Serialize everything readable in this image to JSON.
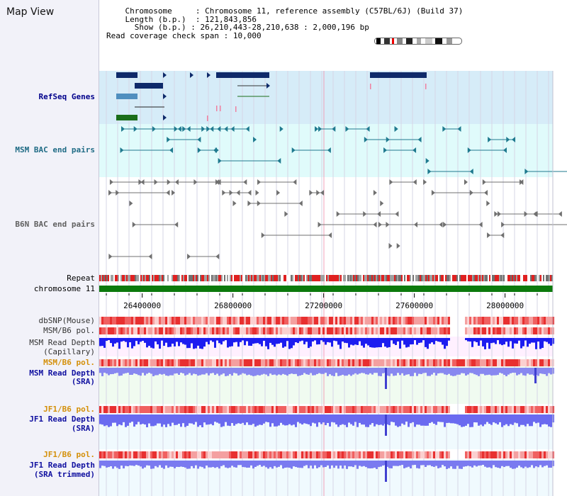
{
  "view": {
    "title": "Map View"
  },
  "info": {
    "chromosome_label": "Chromosome",
    "chromosome_value": "Chromosome 11, reference assembly (C57BL/6J) (Build 37)",
    "length_label": "Length (b.p.)",
    "length_value": "121,843,856",
    "show_label": "Show (b.p.)",
    "show_value": "26,210,443-28,210,638 : 2,000,196 bp",
    "coverage_label": "Read coverage check span",
    "coverage_value": "10,000"
  },
  "tracks": {
    "refseq": "RefSeq Genes",
    "msm_bac": "MSM BAC end pairs",
    "b6n_bac": "B6N BAC end pairs",
    "repeat": "Repeat",
    "chromosome": "chromosome 11",
    "dbsnp": "dbSNP(Mouse)",
    "msm_b6_pol_1": "MSM/B6 pol.",
    "msm_depth_cap_1": "MSM Read Depth",
    "msm_depth_cap_2": "(Capillary)",
    "msm_b6_pol_2": "MSM/B6 pol.",
    "msm_depth_sra_1": "MSM Read Depth",
    "msm_depth_sra_2": "(SRA)",
    "jf1_pol_1": "JF1/B6 pol.",
    "jf1_depth_sra_1": "JF1 Read Depth",
    "jf1_depth_sra_2": "(SRA)",
    "jf1_pol_2": "JF1/B6 pol.",
    "jf1_depth_trim_1": "JF1 Read Depth",
    "jf1_depth_trim_2": "(SRA trimmed)"
  },
  "axis": {
    "ticks": [
      {
        "label": "26400000",
        "value": 26400000
      },
      {
        "label": "26800000",
        "value": 26800000
      },
      {
        "label": "27200000",
        "value": 27200000
      },
      {
        "label": "27600000",
        "value": 27600000
      },
      {
        "label": "28000000",
        "value": 28000000
      }
    ],
    "range": [
      26210443,
      28210638
    ]
  },
  "colors": {
    "refseq_band": "#d6ecf8",
    "msm_band": "#e0fbfb",
    "b6n_band": "#ffffff",
    "dark_gene": "#0e2a6a",
    "mid_gene": "#4f8fbf",
    "green_gene": "#1a6e1a",
    "teal_pair": "#1f7a8f",
    "gray_pair": "#707070",
    "chromosome_bar": "#0c7a0c",
    "depth_blue": "#6a6af0",
    "depth_dark": "#1c1cf0"
  }
}
